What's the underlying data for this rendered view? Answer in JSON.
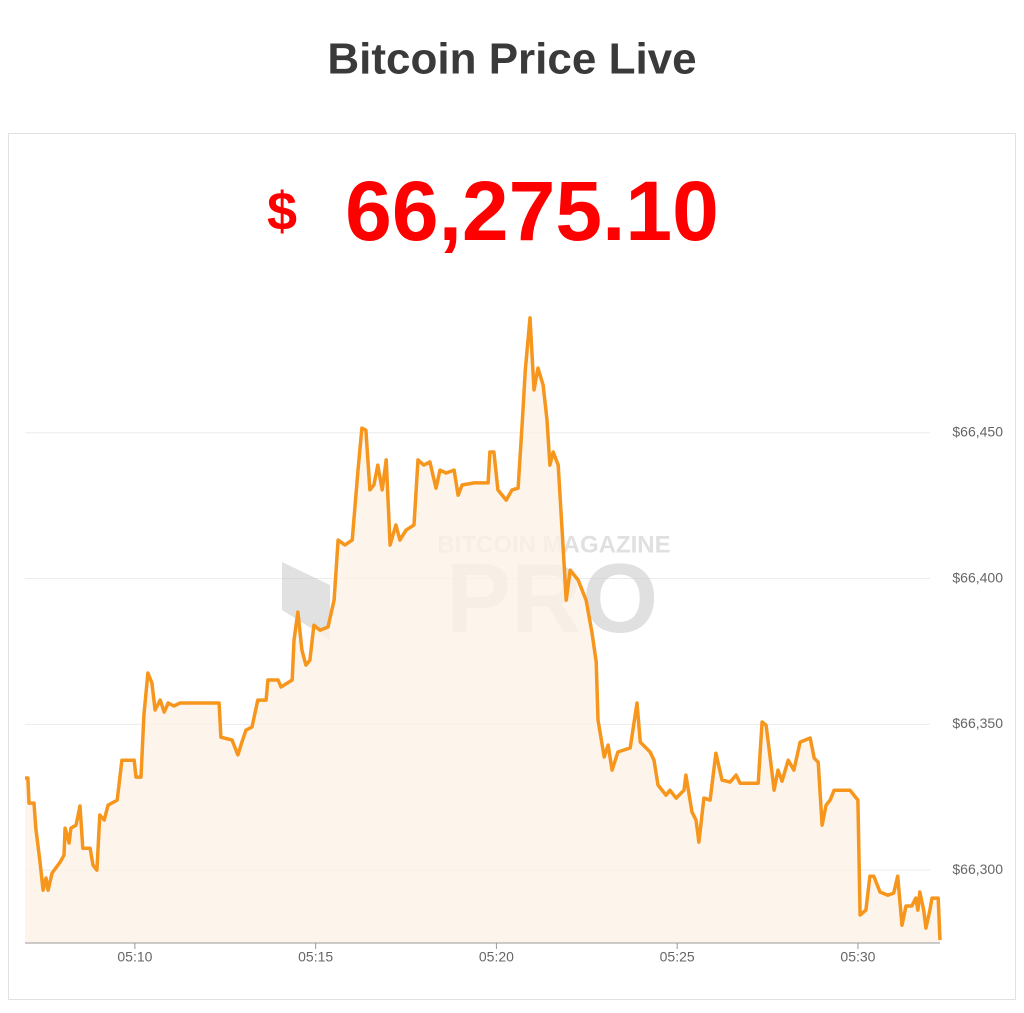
{
  "chart_data": {
    "type": "line",
    "title": "Bitcoin Price Live",
    "price": {
      "currency": "$",
      "amount": "66,275.10"
    },
    "watermark": {
      "top": "BITCOIN MAGAZINE",
      "bottom": "PRO"
    },
    "color": "#f7961c",
    "fill_color": "#fdf3e6",
    "grid": true,
    "xlim": [
      6.96,
      32.27
    ],
    "xticks": [
      {
        "value": 10,
        "label": "05:10"
      },
      {
        "value": 15,
        "label": "05:15"
      },
      {
        "value": 20,
        "label": "05:20"
      },
      {
        "value": 25,
        "label": "05:25"
      },
      {
        "value": 30,
        "label": "05:30"
      }
    ],
    "ylim": [
      66275,
      66500
    ],
    "yticks": [
      {
        "value": 66300,
        "label": "$66,300"
      },
      {
        "value": 66350,
        "label": "$66,350"
      },
      {
        "value": 66400,
        "label": "$66,400"
      },
      {
        "value": 66450,
        "label": "$66,450"
      }
    ],
    "x": [
      6.96,
      7.04,
      7.07,
      7.21,
      7.26,
      7.37,
      7.46,
      7.54,
      7.6,
      7.71,
      7.93,
      8.04,
      8.07,
      8.18,
      8.23,
      8.37,
      8.48,
      8.56,
      8.76,
      8.84,
      8.95,
      9.03,
      9.15,
      9.26,
      9.51,
      9.64,
      9.98,
      10.03,
      10.17,
      10.25,
      10.36,
      10.47,
      10.56,
      10.7,
      10.81,
      10.92,
      11.08,
      11.25,
      11.8,
      12.33,
      12.38,
      12.69,
      12.85,
      12.96,
      13.07,
      13.24,
      13.4,
      13.63,
      13.68,
      13.96,
      14.04,
      14.35,
      14.4,
      14.51,
      14.62,
      14.73,
      14.84,
      14.95,
      15.12,
      15.34,
      15.51,
      15.62,
      15.81,
      16.01,
      16.17,
      16.28,
      16.39,
      16.5,
      16.61,
      16.72,
      16.84,
      16.95,
      17.06,
      17.22,
      17.33,
      17.5,
      17.72,
      17.83,
      17.99,
      18.16,
      18.33,
      18.44,
      18.61,
      18.83,
      18.94,
      19.05,
      19.38,
      19.77,
      19.82,
      19.93,
      20.04,
      20.27,
      20.43,
      20.6,
      20.72,
      20.8,
      20.93,
      21.04,
      21.15,
      21.29,
      21.4,
      21.48,
      21.57,
      21.71,
      21.81,
      21.93,
      22.04,
      22.26,
      22.48,
      22.64,
      22.76,
      22.81,
      22.98,
      23.09,
      23.2,
      23.36,
      23.7,
      23.89,
      23.98,
      24.25,
      24.36,
      24.47,
      24.69,
      24.8,
      24.97,
      25.19,
      25.24,
      25.41,
      25.52,
      25.6,
      25.74,
      25.91,
      26.07,
      26.24,
      26.46,
      26.63,
      26.74,
      27.24,
      27.35,
      27.46,
      27.57,
      27.68,
      27.79,
      27.9,
      28.07,
      28.23,
      28.4,
      28.68,
      28.79,
      28.9,
      29.01,
      29.12,
      29.23,
      29.34,
      29.78,
      30.0,
      30.06,
      30.22,
      30.33,
      30.44,
      30.61,
      30.83,
      30.99,
      31.1,
      31.22,
      31.33,
      31.49,
      31.6,
      31.66,
      31.71,
      31.82,
      31.88,
      31.99,
      32.05,
      32.22,
      32.27
    ],
    "values": [
      66331.6,
      66331.6,
      66323.0,
      66323.0,
      66314.4,
      66303.4,
      66293.1,
      66297.3,
      66293.1,
      66299.0,
      66302.7,
      66305.1,
      66314.4,
      66309.3,
      66314.4,
      66315.4,
      66322.0,
      66307.5,
      66307.5,
      66301.7,
      66300.0,
      66318.9,
      66317.2,
      66322.3,
      66324.0,
      66337.7,
      66337.7,
      66331.9,
      66331.9,
      66353.2,
      66367.6,
      66364.2,
      66354.9,
      66358.3,
      66354.2,
      66357.3,
      66356.3,
      66357.3,
      66357.3,
      66357.3,
      66345.6,
      66344.6,
      66339.5,
      66343.9,
      66348.0,
      66349.1,
      66358.3,
      66358.3,
      66365.2,
      66365.2,
      66362.8,
      66365.2,
      66378.9,
      66388.5,
      66375.5,
      66370.3,
      66372.0,
      66384.0,
      66382.3,
      66383.4,
      66392.6,
      66413.2,
      66411.5,
      66413.2,
      66437.2,
      66451.6,
      66450.9,
      66430.4,
      66432.1,
      66438.9,
      66430.4,
      66440.7,
      66411.5,
      66418.4,
      66413.2,
      66416.6,
      66418.4,
      66440.7,
      66438.9,
      66440.0,
      66431.0,
      66437.2,
      66436.2,
      66437.2,
      66428.6,
      66432.1,
      66432.8,
      66432.8,
      66443.4,
      66443.4,
      66430.4,
      66426.9,
      66430.4,
      66431.0,
      66454.4,
      66471.5,
      66489.4,
      66464.7,
      66472.2,
      66466.4,
      66454.4,
      66438.9,
      66443.4,
      66438.9,
      66417.7,
      66392.6,
      66402.9,
      66399.5,
      66392.6,
      66381.6,
      66371.4,
      66351.5,
      66338.8,
      66342.9,
      66334.3,
      66340.5,
      66341.9,
      66357.3,
      66343.9,
      66340.5,
      66337.7,
      66329.2,
      66325.7,
      66327.4,
      66324.7,
      66327.4,
      66332.6,
      66319.9,
      66317.2,
      66309.6,
      66324.7,
      66324.0,
      66340.1,
      66330.9,
      66330.2,
      66332.6,
      66329.8,
      66329.8,
      66350.8,
      66349.7,
      66338.8,
      66327.4,
      66334.3,
      66330.5,
      66337.7,
      66334.3,
      66343.9,
      66345.3,
      66338.4,
      66337.0,
      66315.4,
      66322.3,
      66324.0,
      66327.4,
      66327.4,
      66324.0,
      66284.6,
      66286.3,
      66297.9,
      66297.9,
      66292.5,
      66291.4,
      66292.1,
      66297.9,
      66281.1,
      66287.7,
      66287.7,
      66290.4,
      66286.3,
      66292.5,
      66286.3,
      66280.1,
      66286.3,
      66290.4,
      66290.4,
      66276.0
    ]
  }
}
